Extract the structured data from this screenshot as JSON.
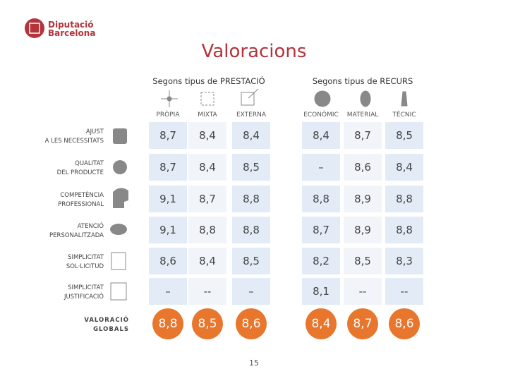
{
  "logo": {
    "line1": "Diputació",
    "line2": "Barcelona"
  },
  "title": "Valoracions",
  "groups": [
    "Segons tipus de PRESTACIÓ",
    "Segons tipus de RECURS"
  ],
  "table": {
    "columns": [
      "PRÒPIA",
      "MIXTA",
      "EXTERNA",
      "ECONÒMIC",
      "MATERIAL",
      "TÈCNIC"
    ],
    "rows": [
      {
        "label": [
          "AJUST",
          "A LES NECESSITATS"
        ],
        "values": [
          "8,7",
          "8,4",
          "8,4",
          "8,4",
          "8,7",
          "8,5"
        ]
      },
      {
        "label": [
          "QUALITAT",
          "DEL PRODUCTE"
        ],
        "values": [
          "8,7",
          "8,4",
          "8,5",
          "–",
          "8,6",
          "8,4"
        ]
      },
      {
        "label": [
          "COMPETÈNCIA",
          "PROFESSIONAL"
        ],
        "values": [
          "9,1",
          "8,7",
          "8,8",
          "8,8",
          "8,9",
          "8,8"
        ]
      },
      {
        "label": [
          "ATENCIÓ",
          "PERSONALITZADA"
        ],
        "values": [
          "9,1",
          "8,8",
          "8,8",
          "8,7",
          "8,9",
          "8,8"
        ]
      },
      {
        "label": [
          "SIMPLICITAT",
          "SOL·LICITUD"
        ],
        "values": [
          "8,6",
          "8,4",
          "8,5",
          "8,2",
          "8,5",
          "8,3"
        ]
      },
      {
        "label": [
          "SIMPLICITAT",
          "JUSTIFICACIÓ"
        ],
        "values": [
          "–",
          "--",
          "–",
          "8,1",
          "--",
          "--"
        ]
      },
      {
        "label": [
          "VALORACIÓ",
          "GLOBALS"
        ],
        "values": [
          "8,8",
          "8,5",
          "8,6",
          "8,4",
          "8,7",
          "8,6"
        ]
      }
    ]
  },
  "page": "15"
}
